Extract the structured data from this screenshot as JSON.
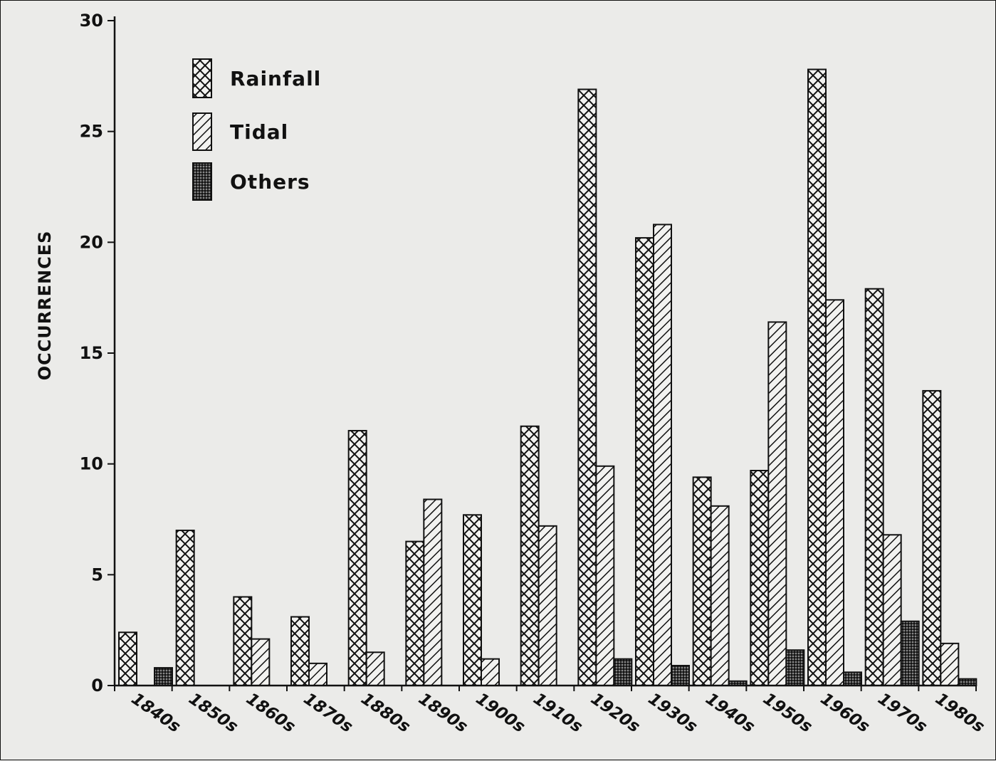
{
  "chart_data": {
    "type": "bar",
    "ylabel": "OCCURRENCES",
    "ylim": [
      0,
      30
    ],
    "yticks": [
      0,
      5,
      10,
      15,
      20,
      25,
      30
    ],
    "categories": [
      "1840s",
      "1850s",
      "1860s",
      "1870s",
      "1880s",
      "1890s",
      "1900s",
      "1910s",
      "1920s",
      "1930s",
      "1940s",
      "1950s",
      "1960s",
      "1970s",
      "1980s"
    ],
    "series": [
      {
        "name": "Rainfall",
        "pattern": "crosshatch",
        "values": [
          2.4,
          7.0,
          4.0,
          3.1,
          11.5,
          6.5,
          7.7,
          11.7,
          26.9,
          20.2,
          9.4,
          9.7,
          27.8,
          17.9,
          13.3
        ]
      },
      {
        "name": "Tidal",
        "pattern": "diagonal",
        "values": [
          0,
          0,
          2.1,
          1.0,
          1.5,
          8.4,
          1.2,
          7.2,
          9.9,
          20.8,
          8.1,
          16.4,
          17.4,
          6.8,
          1.9
        ]
      },
      {
        "name": "Others",
        "pattern": "dots",
        "values": [
          0.8,
          0,
          0,
          0,
          0,
          0,
          0,
          0,
          1.2,
          0.9,
          0.2,
          1.6,
          0.6,
          2.9,
          0.3
        ]
      }
    ],
    "grid": false,
    "legend_position": "top-left"
  }
}
